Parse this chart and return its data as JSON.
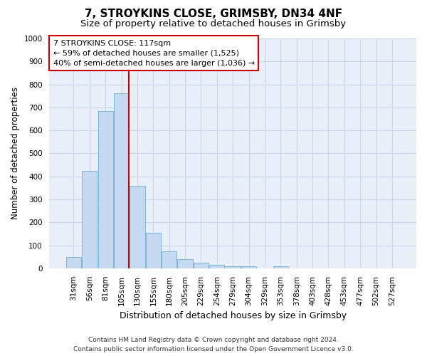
{
  "title": "7, STROYKINS CLOSE, GRIMSBY, DN34 4NF",
  "subtitle": "Size of property relative to detached houses in Grimsby",
  "xlabel": "Distribution of detached houses by size in Grimsby",
  "ylabel": "Number of detached properties",
  "categories": [
    "31sqm",
    "56sqm",
    "81sqm",
    "105sqm",
    "130sqm",
    "155sqm",
    "180sqm",
    "205sqm",
    "229sqm",
    "254sqm",
    "279sqm",
    "304sqm",
    "329sqm",
    "353sqm",
    "378sqm",
    "403sqm",
    "428sqm",
    "453sqm",
    "477sqm",
    "502sqm",
    "527sqm"
  ],
  "values": [
    50,
    425,
    685,
    760,
    360,
    155,
    75,
    40,
    25,
    15,
    10,
    10,
    0,
    10,
    0,
    0,
    0,
    0,
    0,
    0,
    0
  ],
  "bar_color": "#c5d9f0",
  "bar_edge_color": "#6baed6",
  "bar_width": 0.95,
  "vline_color": "#cc0000",
  "vline_pos": 3.48,
  "ylim": [
    0,
    1000
  ],
  "yticks": [
    0,
    100,
    200,
    300,
    400,
    500,
    600,
    700,
    800,
    900,
    1000
  ],
  "annotation_title": "7 STROYKINS CLOSE: 117sqm",
  "annotation_line1": "← 59% of detached houses are smaller (1,525)",
  "annotation_line2": "40% of semi-detached houses are larger (1,036) →",
  "annotation_box_color": "#ffffff",
  "annotation_box_edge": "#cc0000",
  "footer1": "Contains HM Land Registry data © Crown copyright and database right 2024.",
  "footer2": "Contains public sector information licensed under the Open Government Licence v3.0.",
  "plot_bg_color": "#e8eff8",
  "fig_bg_color": "#ffffff",
  "grid_color": "#c8d4e8",
  "title_fontsize": 11,
  "subtitle_fontsize": 9.5,
  "ylabel_fontsize": 8.5,
  "xlabel_fontsize": 9,
  "tick_fontsize": 7.5,
  "annotation_fontsize": 8,
  "footer_fontsize": 6.5
}
